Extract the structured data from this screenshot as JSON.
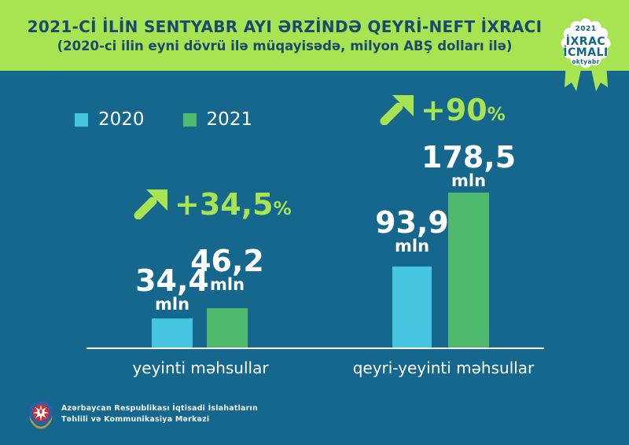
{
  "header": {
    "title": "2021-Cİ İLİN SENTYABR AYI ƏRZİNDƏ QEYRİ-NEFT İXRACI",
    "subtitle": "(2020-ci ilin eyni dövrü ilə müqayisədə, milyon ABŞ dolları ilə)"
  },
  "badge": {
    "year": "2021",
    "title_line1": "İXRAC",
    "title_line2": "İCMALI",
    "month": "oktyabr"
  },
  "chart_data": {
    "type": "bar",
    "title": "2021-ci ilin sentyabr ayı ərzində qeyri-neft ixracı (milyon ABŞ dolları)",
    "unit": "mln",
    "percent_sign": "%",
    "ylim": [
      0,
      180
    ],
    "grid": false,
    "legend_position": "top-left",
    "categories": [
      "yeyinti məhsullar",
      "qeyri-yeyinti məhsullar"
    ],
    "series": [
      {
        "name": "2020",
        "color": "#45c5e0",
        "values": [
          34.4,
          93.9
        ]
      },
      {
        "name": "2021",
        "color": "#4fb96d",
        "values": [
          46.2,
          178.5
        ]
      }
    ],
    "groups": [
      {
        "category": "yeyinti məhsullar",
        "change_label": "+34,5",
        "bars": [
          {
            "year": "2020",
            "value": 34.4,
            "label": "34,4"
          },
          {
            "year": "2021",
            "value": 46.2,
            "label": "46,2"
          }
        ]
      },
      {
        "category": "qeyri-yeyinti məhsullar",
        "change_label": "+90",
        "bars": [
          {
            "year": "2020",
            "value": 93.9,
            "label": "93,9"
          },
          {
            "year": "2021",
            "value": 178.5,
            "label": "178,5"
          }
        ]
      }
    ]
  },
  "footer": {
    "org_line1": "Azərbaycan Respublikası İqtisadi İslahatların",
    "org_line2": "Təhlili və Kommunikasiya Mərkəzi"
  },
  "colors": {
    "header_bg": "#a8e452",
    "body_bg": "#15678e",
    "accent": "#a8e452",
    "bar_2020": "#45c5e0",
    "bar_2021": "#4fb96d",
    "title_text": "#1a4a6d",
    "badge_text": "#11658b"
  }
}
